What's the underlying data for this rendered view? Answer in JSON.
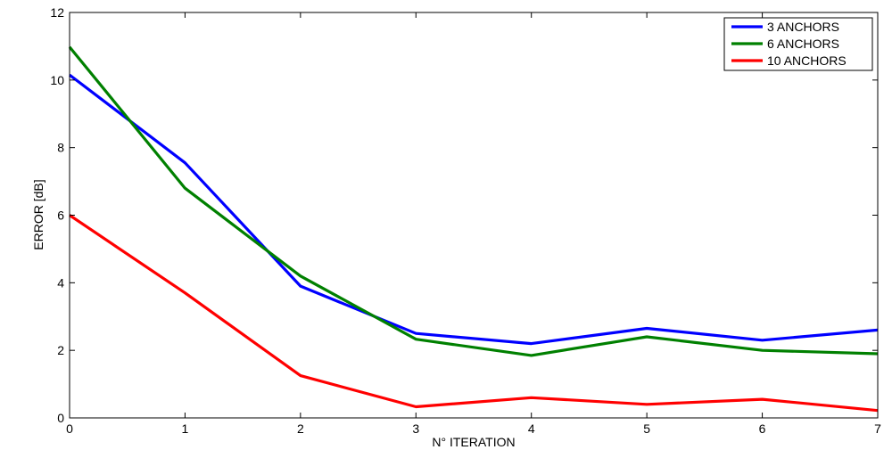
{
  "chart_data": {
    "type": "line",
    "title": "",
    "xlabel": "N° ITERATION",
    "ylabel": "ERROR [dB]",
    "xlim": [
      0,
      7
    ],
    "ylim": [
      0,
      12
    ],
    "xticks": [
      0,
      1,
      2,
      3,
      4,
      5,
      6,
      7
    ],
    "yticks": [
      0,
      2,
      4,
      6,
      8,
      10,
      12
    ],
    "grid": false,
    "legend_position": "top-right",
    "x": [
      0,
      1,
      2,
      3,
      4,
      5,
      6,
      7
    ],
    "series": [
      {
        "name": "3 ANCHORS",
        "color": "#0000ff",
        "values": [
          10.15,
          7.55,
          3.9,
          2.5,
          2.2,
          2.65,
          2.3,
          2.6
        ]
      },
      {
        "name": "6 ANCHORS",
        "color": "#008000",
        "values": [
          10.98,
          6.8,
          4.2,
          2.33,
          1.85,
          2.4,
          2.0,
          1.9
        ]
      },
      {
        "name": "10 ANCHORS",
        "color": "#ff0000",
        "values": [
          6.0,
          3.7,
          1.25,
          0.33,
          0.6,
          0.4,
          0.55,
          0.22
        ]
      }
    ]
  }
}
